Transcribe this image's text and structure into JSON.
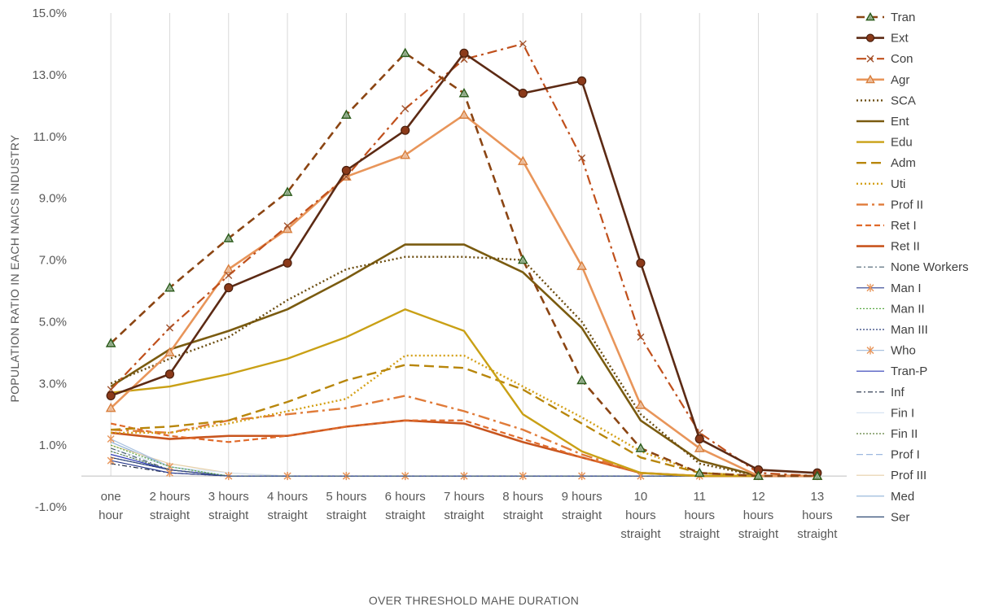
{
  "chart_data": {
    "type": "line",
    "xlabel": "OVER THRESHOLD MAHE DURATION",
    "ylabel": "POPULATION RATIO IN EACH NAICS INDUSTRY",
    "ylim": [
      -1.0,
      15.0
    ],
    "y_ticks": [
      "-1.0%",
      "1.0%",
      "3.0%",
      "5.0%",
      "7.0%",
      "9.0%",
      "11.0%",
      "13.0%",
      "15.0%"
    ],
    "categories": [
      [
        "one",
        "hour"
      ],
      [
        "2 hours",
        "straight"
      ],
      [
        "3 hours",
        "straight"
      ],
      [
        "4 hours",
        "straight"
      ],
      [
        "5 hours",
        "straight"
      ],
      [
        "6 hours",
        "straight"
      ],
      [
        "7 hours",
        "straight"
      ],
      [
        "8 hours",
        "straight"
      ],
      [
        "9 hours",
        "straight"
      ],
      [
        "10",
        "hours",
        "straight"
      ],
      [
        "11",
        "hours",
        "straight"
      ],
      [
        "12",
        "hours",
        "straight"
      ],
      [
        "13",
        "hours",
        "straight"
      ]
    ],
    "grid": "vertical",
    "legend_position": "right",
    "series": [
      {
        "name": "Tran",
        "color": "#8B4513",
        "dash": "10,6",
        "width": 2.6,
        "marker": "triangle",
        "marker_color": "#2E5E1E",
        "values": [
          4.3,
          6.1,
          7.7,
          9.2,
          11.7,
          13.7,
          12.4,
          7.0,
          3.1,
          0.9,
          0.1,
          0.0,
          0.0
        ]
      },
      {
        "name": "Ext",
        "color": "#5C2A14",
        "dash": "",
        "width": 2.6,
        "marker": "circle",
        "marker_color": "#8B3A1A",
        "values": [
          2.6,
          3.3,
          6.1,
          6.9,
          9.9,
          11.2,
          13.7,
          12.4,
          12.8,
          6.9,
          1.2,
          0.2,
          0.1
        ]
      },
      {
        "name": "Con",
        "color": "#C0501C",
        "dash": "12,5,3,5",
        "width": 2.2,
        "marker": "cross",
        "marker_color": "#A0522D",
        "values": [
          2.8,
          4.8,
          6.5,
          8.1,
          9.7,
          11.9,
          13.5,
          14.0,
          10.3,
          4.5,
          1.4,
          0.1,
          0.0
        ]
      },
      {
        "name": "Agr",
        "color": "#E8955A",
        "dash": "",
        "width": 2.6,
        "marker": "triangle",
        "marker_color": "#D9803F",
        "values": [
          2.2,
          4.0,
          6.7,
          8.0,
          9.7,
          10.4,
          11.7,
          10.2,
          6.8,
          2.3,
          0.9,
          0.0,
          0.0
        ]
      },
      {
        "name": "SCA",
        "color": "#6B4C0F",
        "dash": "2,3",
        "width": 2.4,
        "marker": "",
        "marker_color": "",
        "values": [
          3.0,
          3.8,
          4.5,
          5.7,
          6.7,
          7.1,
          7.1,
          7.0,
          5.0,
          2.0,
          0.4,
          0.0,
          0.0
        ]
      },
      {
        "name": "Ent",
        "color": "#7A5B10",
        "dash": "",
        "width": 2.6,
        "marker": "",
        "marker_color": "",
        "values": [
          2.9,
          4.1,
          4.7,
          5.4,
          6.4,
          7.5,
          7.5,
          6.6,
          4.8,
          1.8,
          0.5,
          0.0,
          0.0
        ]
      },
      {
        "name": "Edu",
        "color": "#C9A015",
        "dash": "",
        "width": 2.4,
        "marker": "",
        "marker_color": "",
        "values": [
          2.7,
          2.9,
          3.3,
          3.8,
          4.5,
          5.4,
          4.7,
          2.0,
          0.8,
          0.1,
          0.0,
          0.0,
          0.0
        ]
      },
      {
        "name": "Adm",
        "color": "#B8860B",
        "dash": "12,6",
        "width": 2.4,
        "marker": "",
        "marker_color": "",
        "values": [
          1.5,
          1.6,
          1.8,
          2.4,
          3.1,
          3.6,
          3.5,
          2.8,
          1.7,
          0.6,
          0.1,
          0.0,
          0.0
        ]
      },
      {
        "name": "Uti",
        "color": "#D4A017",
        "dash": "2,3",
        "width": 2.4,
        "marker": "",
        "marker_color": "",
        "values": [
          1.4,
          1.4,
          1.7,
          2.1,
          2.5,
          3.9,
          3.9,
          2.9,
          1.9,
          0.8,
          0.1,
          0.0,
          0.0
        ]
      },
      {
        "name": "Prof II",
        "color": "#E07B39",
        "dash": "14,5,3,5",
        "width": 2.4,
        "marker": "",
        "marker_color": "",
        "values": [
          1.5,
          1.4,
          1.8,
          2.0,
          2.2,
          2.6,
          2.1,
          1.5,
          0.7,
          0.1,
          0.0,
          0.0,
          0.0
        ]
      },
      {
        "name": "Ret I",
        "color": "#E06A2A",
        "dash": "7,4",
        "width": 2.2,
        "marker": "",
        "marker_color": "",
        "values": [
          1.7,
          1.3,
          1.1,
          1.3,
          1.6,
          1.8,
          1.8,
          1.2,
          0.6,
          0.1,
          0.0,
          0.0,
          0.0
        ]
      },
      {
        "name": "Ret II",
        "color": "#C8551E",
        "dash": "",
        "width": 2.6,
        "marker": "",
        "marker_color": "",
        "values": [
          1.4,
          1.2,
          1.3,
          1.3,
          1.6,
          1.8,
          1.7,
          1.1,
          0.6,
          0.1,
          0.0,
          0.0,
          0.0
        ]
      },
      {
        "name": "None Workers",
        "color": "#4A6070",
        "dash": "6,3,2,3",
        "width": 1.2,
        "marker": "",
        "marker_color": "",
        "values": [
          0.9,
          0.2,
          0.0,
          0.0,
          0.0,
          0.0,
          0.0,
          0.0,
          0.0,
          0.0,
          0.0,
          0.0,
          0.0
        ]
      },
      {
        "name": "Man I",
        "color": "#2E3F8F",
        "dash": "",
        "width": 1.2,
        "marker": "asterisk",
        "marker_color": "#E8955A",
        "values": [
          0.5,
          0.1,
          0.0,
          0.0,
          0.0,
          0.0,
          0.0,
          0.0,
          0.0,
          0.0,
          0.0,
          0.0,
          0.0
        ]
      },
      {
        "name": "Man II",
        "color": "#5BAA46",
        "dash": "2,2",
        "width": 1.2,
        "marker": "",
        "marker_color": "",
        "values": [
          1.0,
          0.3,
          0.0,
          0.0,
          0.0,
          0.0,
          0.0,
          0.0,
          0.0,
          0.0,
          0.0,
          0.0,
          0.0
        ]
      },
      {
        "name": "Man III",
        "color": "#2B3F7A",
        "dash": "2,2",
        "width": 1.2,
        "marker": "",
        "marker_color": "",
        "values": [
          0.6,
          0.2,
          0.0,
          0.0,
          0.0,
          0.0,
          0.0,
          0.0,
          0.0,
          0.0,
          0.0,
          0.0,
          0.0
        ]
      },
      {
        "name": "Who",
        "color": "#A9C1DF",
        "dash": "",
        "width": 1.2,
        "marker": "asterisk",
        "marker_color": "#E8955A",
        "values": [
          1.2,
          0.3,
          0.0,
          0.0,
          0.0,
          0.0,
          0.0,
          0.0,
          0.0,
          0.0,
          0.0,
          0.0,
          0.0
        ]
      },
      {
        "name": "Tran-P",
        "color": "#2F3BB5",
        "dash": "",
        "width": 1.2,
        "marker": "",
        "marker_color": "",
        "values": [
          0.7,
          0.2,
          0.0,
          0.0,
          0.0,
          0.0,
          0.0,
          0.0,
          0.0,
          0.0,
          0.0,
          0.0,
          0.0
        ]
      },
      {
        "name": "Inf",
        "color": "#1F2A44",
        "dash": "6,3,2,3",
        "width": 1.2,
        "marker": "",
        "marker_color": "",
        "values": [
          0.4,
          0.1,
          0.0,
          0.0,
          0.0,
          0.0,
          0.0,
          0.0,
          0.0,
          0.0,
          0.0,
          0.0,
          0.0
        ]
      },
      {
        "name": "Fin I",
        "color": "#D7E4F2",
        "dash": "",
        "width": 1.2,
        "marker": "",
        "marker_color": "",
        "values": [
          0.9,
          0.3,
          0.1,
          0.0,
          0.0,
          0.0,
          0.0,
          0.0,
          0.0,
          0.0,
          0.0,
          0.0,
          0.0
        ]
      },
      {
        "name": "Fin II",
        "color": "#5E7F3A",
        "dash": "2,2",
        "width": 1.2,
        "marker": "",
        "marker_color": "",
        "values": [
          0.8,
          0.2,
          0.0,
          0.0,
          0.0,
          0.0,
          0.0,
          0.0,
          0.0,
          0.0,
          0.0,
          0.0,
          0.0
        ]
      },
      {
        "name": "Prof I",
        "color": "#9DB7E0",
        "dash": "8,4",
        "width": 1.2,
        "marker": "",
        "marker_color": "",
        "values": [
          0.8,
          0.2,
          0.0,
          0.0,
          0.0,
          0.0,
          0.0,
          0.0,
          0.0,
          0.0,
          0.0,
          0.0,
          0.0
        ]
      },
      {
        "name": "Prof III",
        "color": "#E6CFA8",
        "dash": "",
        "width": 1.2,
        "marker": "",
        "marker_color": "",
        "values": [
          1.0,
          0.4,
          0.1,
          0.0,
          0.0,
          0.0,
          0.0,
          0.0,
          0.0,
          0.0,
          0.0,
          0.0,
          0.0
        ]
      },
      {
        "name": "Med",
        "color": "#8FB3D9",
        "dash": "",
        "width": 1.2,
        "marker": "",
        "marker_color": "",
        "values": [
          1.1,
          0.3,
          0.0,
          0.0,
          0.0,
          0.0,
          0.0,
          0.0,
          0.0,
          0.0,
          0.0,
          0.0,
          0.0
        ]
      },
      {
        "name": "Ser",
        "color": "#2F4A73",
        "dash": "",
        "width": 1.2,
        "marker": "",
        "marker_color": "",
        "values": [
          0.6,
          0.2,
          0.0,
          0.0,
          0.0,
          0.0,
          0.0,
          0.0,
          0.0,
          0.0,
          0.0,
          0.0,
          0.0
        ]
      }
    ]
  }
}
